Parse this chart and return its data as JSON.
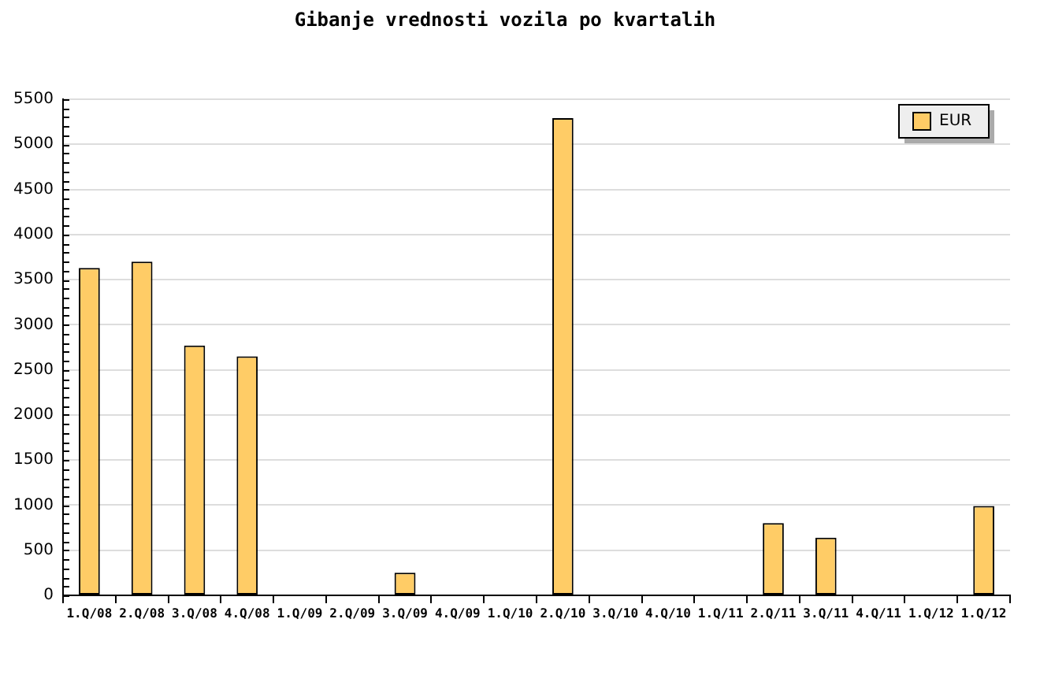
{
  "chart_data": {
    "type": "bar",
    "title": "Gibanje vrednosti vozila po kvartalih",
    "categories": [
      "1.Q/08",
      "2.Q/08",
      "3.Q/08",
      "4.Q/08",
      "1.Q/09",
      "2.Q/09",
      "3.Q/09",
      "4.Q/09",
      "1.Q/10",
      "2.Q/10",
      "3.Q/10",
      "4.Q/10",
      "1.Q/11",
      "2.Q/11",
      "3.Q/11",
      "4.Q/11",
      "1.Q/12",
      "1.Q/12"
    ],
    "series": [
      {
        "name": "EUR",
        "color": "#ffcc66",
        "values": [
          3630,
          3700,
          2770,
          2650,
          0,
          0,
          250,
          0,
          0,
          5290,
          0,
          0,
          0,
          800,
          640,
          0,
          0,
          990
        ]
      }
    ],
    "ylim": [
      0,
      5500
    ],
    "yticks": [
      0,
      {
        "value": 100,
        "label": null
      },
      {
        "value": 200,
        "label": null
      },
      {
        "value": 300,
        "label": null
      },
      {
        "value": 400,
        "label": null
      },
      500,
      {
        "value": 600,
        "label": null
      },
      {
        "value": 700,
        "label": null
      },
      {
        "value": 800,
        "label": null
      },
      {
        "value": 900,
        "label": null
      },
      1000,
      {
        "value": 1100,
        "label": null
      },
      {
        "value": 1200,
        "label": null
      },
      {
        "value": 1300,
        "label": null
      },
      {
        "value": 1400,
        "label": null
      },
      1500,
      {
        "value": 1600,
        "label": null
      },
      {
        "value": 1700,
        "label": null
      },
      {
        "value": 1800,
        "label": null
      },
      {
        "value": 1900,
        "label": null
      },
      2000,
      {
        "value": 2100,
        "label": null
      },
      {
        "value": 2200,
        "label": null
      },
      {
        "value": 2300,
        "label": null
      },
      {
        "value": 2400,
        "label": null
      },
      2500,
      {
        "value": 2600,
        "label": null
      },
      {
        "value": 2700,
        "label": null
      },
      {
        "value": 2800,
        "label": null
      },
      {
        "value": 2900,
        "label": null
      },
      3000,
      {
        "value": 3100,
        "label": null
      },
      {
        "value": 3200,
        "label": null
      },
      {
        "value": 3300,
        "label": null
      },
      {
        "value": 3400,
        "label": null
      },
      3500,
      {
        "value": 3600,
        "label": null
      },
      {
        "value": 3700,
        "label": null
      },
      {
        "value": 3800,
        "label": null
      },
      {
        "value": 3900,
        "label": null
      },
      4000,
      {
        "value": 4100,
        "label": null
      },
      {
        "value": 4200,
        "label": null
      },
      {
        "value": 4300,
        "label": null
      },
      {
        "value": 4400,
        "label": null
      },
      4500,
      {
        "value": 4600,
        "label": null
      },
      {
        "value": 4700,
        "label": null
      },
      {
        "value": 4800,
        "label": null
      },
      {
        "value": 4900,
        "label": null
      },
      5000,
      {
        "value": 5100,
        "label": null
      },
      {
        "value": 5200,
        "label": null
      },
      {
        "value": 5300,
        "label": null
      },
      {
        "value": 5400,
        "label": null
      },
      5500
    ],
    "grid": "y",
    "legend": "top right"
  }
}
